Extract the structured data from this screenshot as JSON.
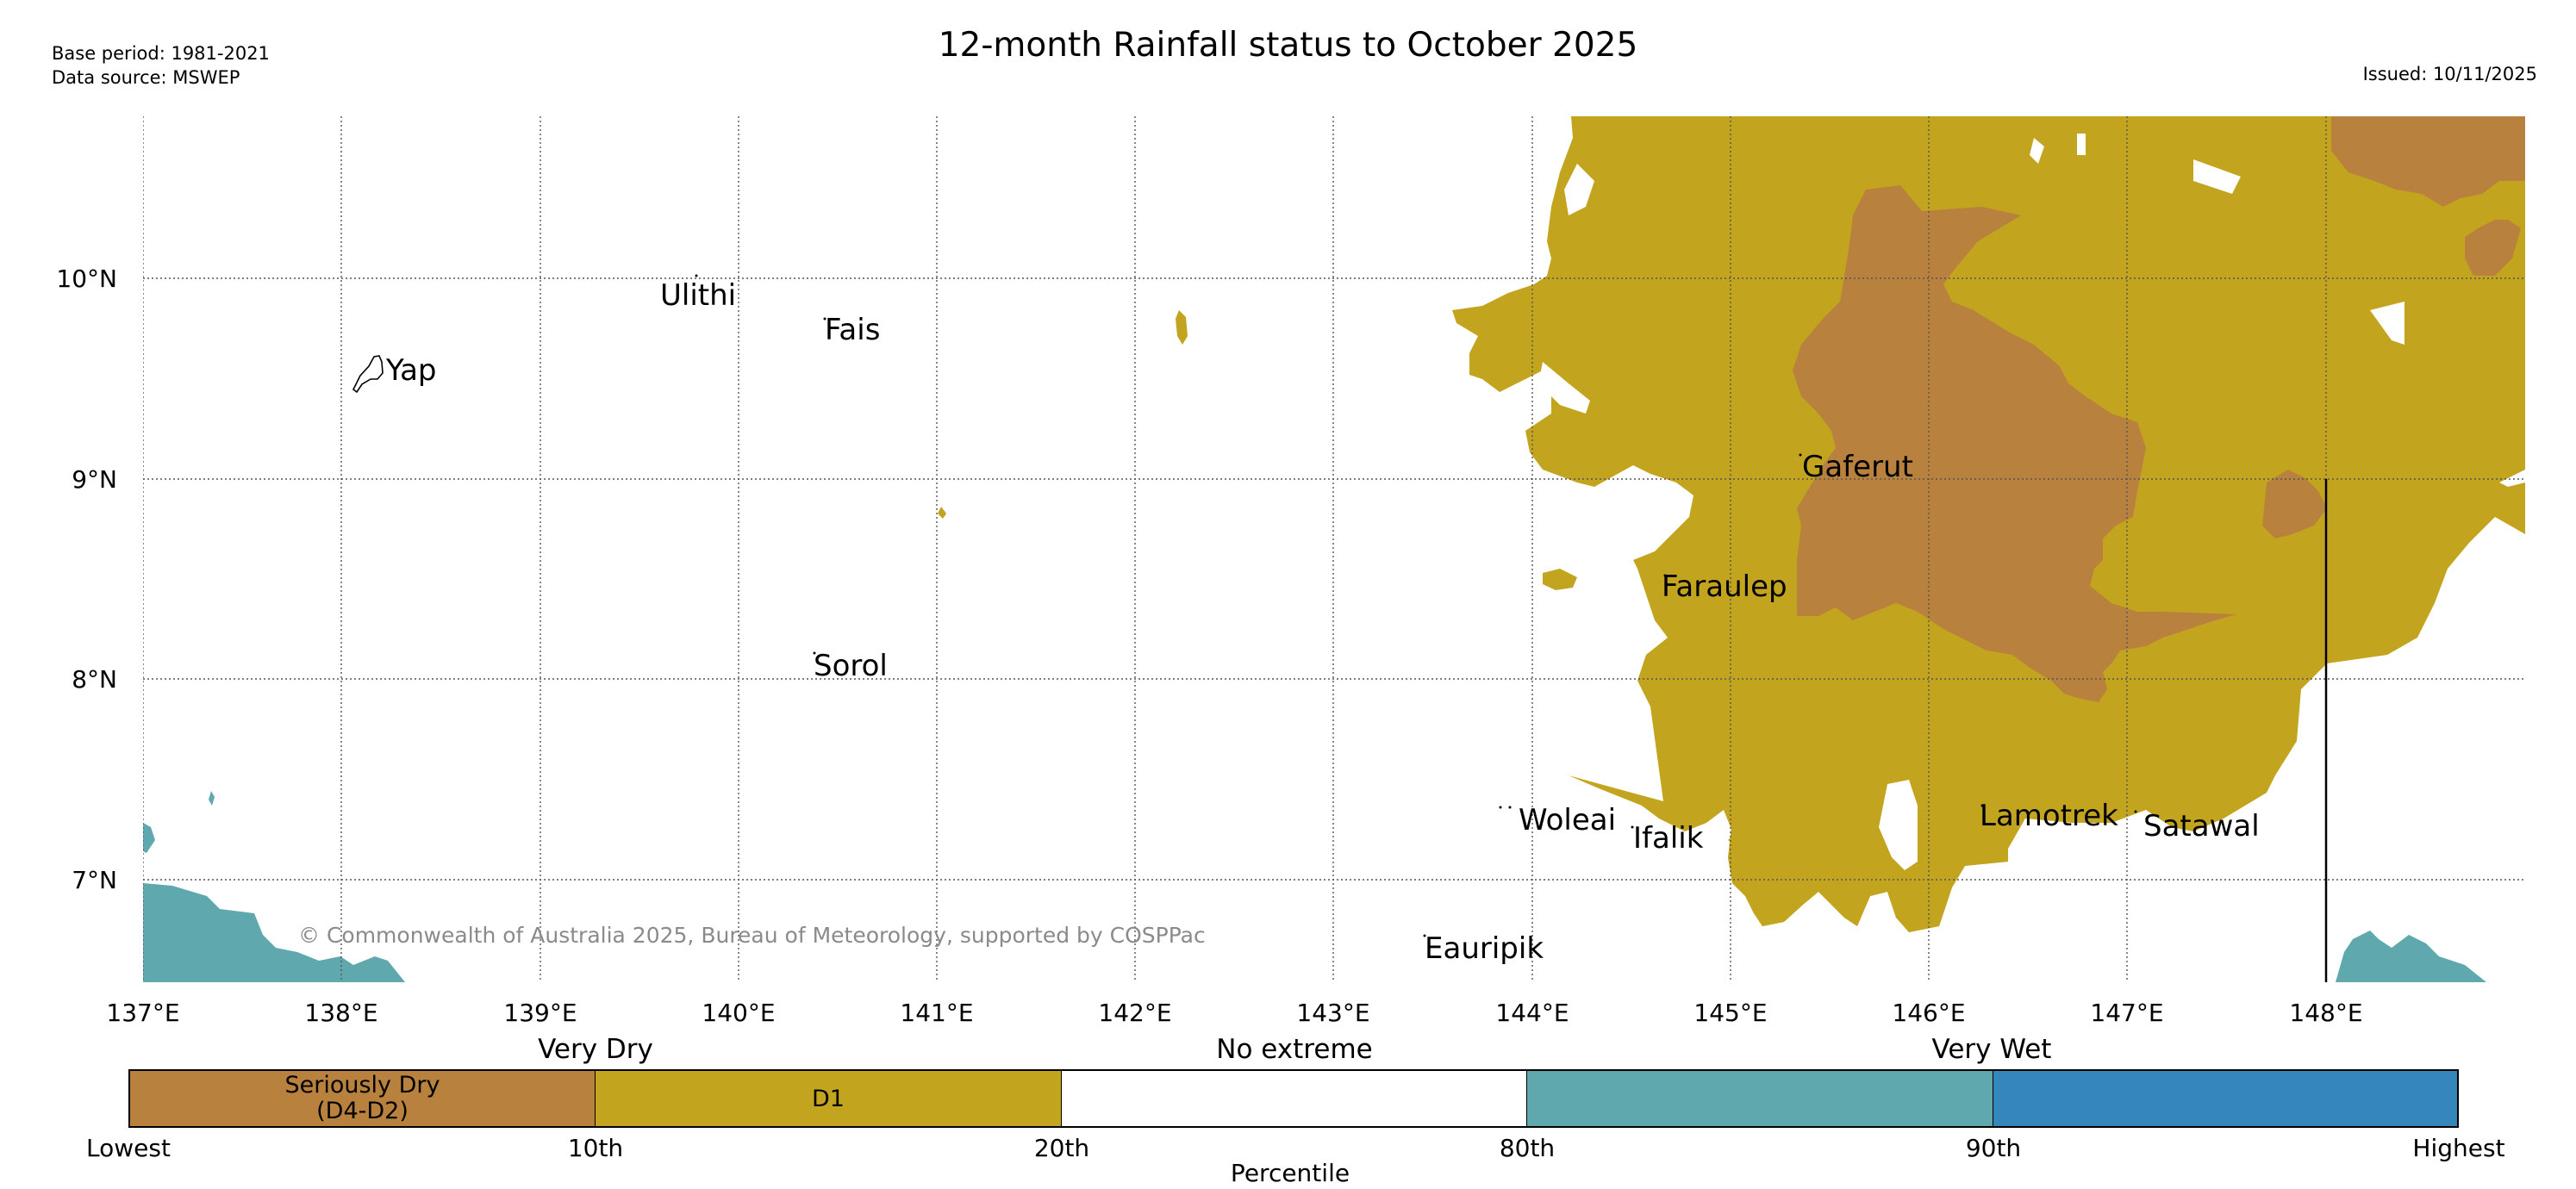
{
  "header": {
    "title": "12-month Rainfall status to October 2025",
    "base_period": "Base period: 1981-2021",
    "data_source": "Data source: MSWEP",
    "issued": "Issued: 10/11/2025"
  },
  "map": {
    "lon_ticks": [
      "137°E",
      "138°E",
      "139°E",
      "140°E",
      "141°E",
      "142°E",
      "143°E",
      "144°E",
      "145°E",
      "146°E",
      "147°E",
      "148°E"
    ],
    "lat_ticks": [
      "10°N",
      "9°N",
      "8°N",
      "7°N"
    ],
    "places": [
      "Yap",
      "Ulithi",
      "Fais",
      "Sorol",
      "Gaferut",
      "Faraulep",
      "Woleai",
      "Ifalik",
      "Eauripik",
      "Lamotrek",
      "Satawal"
    ],
    "copyright": "© Commonwealth of Australia 2025, Bureau of Meteorology, supported by COSPPac",
    "colors": {
      "seriously_dry": "#b8813e",
      "d1": "#c3a41f",
      "no_extreme": "#ffffff",
      "wet": "#5fa9ae",
      "very_wet": "#3586bb"
    }
  },
  "legend": {
    "group_very_dry": "Very Dry",
    "group_no_extreme": "No extreme",
    "group_very_wet": "Very Wet",
    "seg_seriously_dry_line1": "Seriously Dry",
    "seg_seriously_dry_line2": "(D4-D2)",
    "seg_d1": "D1",
    "ticks": [
      "Lowest",
      "10th",
      "20th",
      "80th",
      "90th",
      "Highest"
    ],
    "axis_label": "Percentile"
  }
}
